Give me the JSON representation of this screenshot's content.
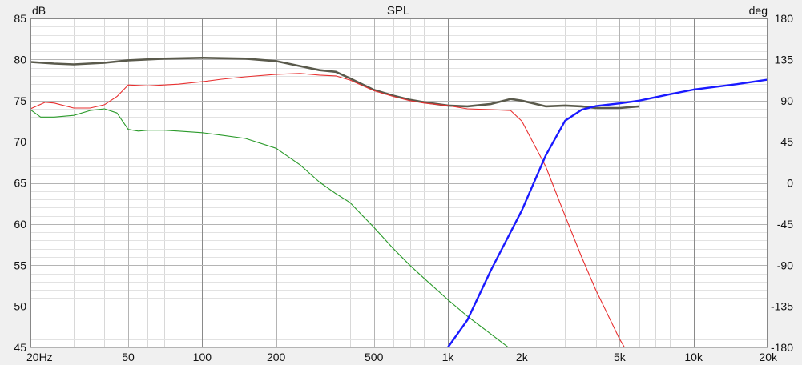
{
  "chart_data": {
    "type": "line",
    "title": "SPL",
    "y_left_unit": "dB",
    "y_right_unit": "deg",
    "x_scale": "log",
    "xlim": [
      20,
      20000
    ],
    "ylim_left": [
      45,
      85
    ],
    "ylim_right": [
      -180,
      180
    ],
    "grid": true,
    "x_ticks": [
      {
        "value": 20,
        "label": "20Hz"
      },
      {
        "value": 50,
        "label": "50"
      },
      {
        "value": 100,
        "label": "100"
      },
      {
        "value": 200,
        "label": "200"
      },
      {
        "value": 500,
        "label": "500"
      },
      {
        "value": 1000,
        "label": "1k"
      },
      {
        "value": 2000,
        "label": "2k"
      },
      {
        "value": 5000,
        "label": "5k"
      },
      {
        "value": 10000,
        "label": "10k"
      },
      {
        "value": 20000,
        "label": "20k"
      }
    ],
    "y_left_ticks": [
      {
        "value": 85,
        "label": "85"
      },
      {
        "value": 80,
        "label": "80"
      },
      {
        "value": 75,
        "label": "75"
      },
      {
        "value": 70,
        "label": "70"
      },
      {
        "value": 65,
        "label": "65"
      },
      {
        "value": 60,
        "label": "60"
      },
      {
        "value": 55,
        "label": "55"
      },
      {
        "value": 50,
        "label": "50"
      },
      {
        "value": 45,
        "label": "45"
      }
    ],
    "y_right_ticks": [
      {
        "value": 180,
        "label": "180"
      },
      {
        "value": 135,
        "label": "135"
      },
      {
        "value": 90,
        "label": "90"
      },
      {
        "value": 45,
        "label": "45"
      },
      {
        "value": 0,
        "label": "0"
      },
      {
        "value": -45,
        "label": "-45"
      },
      {
        "value": -90,
        "label": "-90"
      },
      {
        "value": -135,
        "label": "-135"
      },
      {
        "value": -180,
        "label": "-180"
      }
    ],
    "series": [
      {
        "color": "#5a5a4c",
        "axis": "left",
        "x": [
          20,
          25,
          30,
          40,
          50,
          70,
          100,
          150,
          200,
          250,
          300,
          350,
          400,
          500,
          600,
          700,
          800,
          1000,
          1200,
          1500,
          1800,
          2000,
          2500,
          3000,
          3500,
          4000,
          5000,
          6000
        ],
        "y": [
          79.7,
          79.5,
          79.4,
          79.6,
          79.9,
          80.1,
          80.2,
          80.1,
          79.8,
          79.2,
          78.7,
          78.5,
          77.7,
          76.3,
          75.6,
          75.1,
          74.8,
          74.4,
          74.3,
          74.6,
          75.2,
          75.0,
          74.3,
          74.4,
          74.3,
          74.1,
          74.1,
          74.3
        ]
      },
      {
        "color": "#e83030",
        "axis": "left",
        "x": [
          20,
          23,
          25,
          30,
          35,
          40,
          45,
          50,
          60,
          70,
          80,
          100,
          120,
          150,
          200,
          250,
          300,
          350,
          400,
          500,
          600,
          700,
          800,
          1000,
          1200,
          1500,
          1800,
          2000,
          2500,
          3000,
          3500,
          4000,
          5000,
          6000
        ],
        "y": [
          74.0,
          74.8,
          74.7,
          74.1,
          74.1,
          74.5,
          75.5,
          76.9,
          76.8,
          76.9,
          77.0,
          77.3,
          77.6,
          77.9,
          78.2,
          78.3,
          78.1,
          78.0,
          77.5,
          76.2,
          75.5,
          75.0,
          74.7,
          74.4,
          74.0,
          73.9,
          73.8,
          72.5,
          67.0,
          61.0,
          56.0,
          52.0,
          46.0,
          42.0
        ]
      },
      {
        "color": "#2a9a2a",
        "axis": "left",
        "x": [
          20,
          22,
          25,
          30,
          35,
          40,
          45,
          50,
          55,
          60,
          70,
          80,
          100,
          120,
          150,
          200,
          250,
          300,
          350,
          400,
          450,
          500,
          600,
          700,
          800,
          1000,
          1200,
          1500,
          1800,
          2000
        ],
        "y": [
          73.9,
          73.0,
          73.0,
          73.2,
          73.8,
          74.0,
          73.5,
          71.5,
          71.3,
          71.4,
          71.4,
          71.3,
          71.1,
          70.8,
          70.4,
          69.2,
          67.2,
          65.1,
          63.7,
          62.6,
          61.0,
          59.6,
          57.0,
          55.0,
          53.4,
          50.8,
          48.8,
          46.6,
          44.8,
          43.5
        ]
      },
      {
        "color": "#1a1aff",
        "axis": "right",
        "x": [
          1000,
          1200,
          1500,
          2000,
          2500,
          3000,
          3500,
          4000,
          5000,
          6000,
          8000,
          10000,
          15000,
          20000
        ],
        "y": [
          -180,
          -150,
          -95,
          -30,
          30,
          68,
          80,
          84,
          87,
          90,
          97,
          102,
          108,
          113
        ]
      }
    ]
  }
}
